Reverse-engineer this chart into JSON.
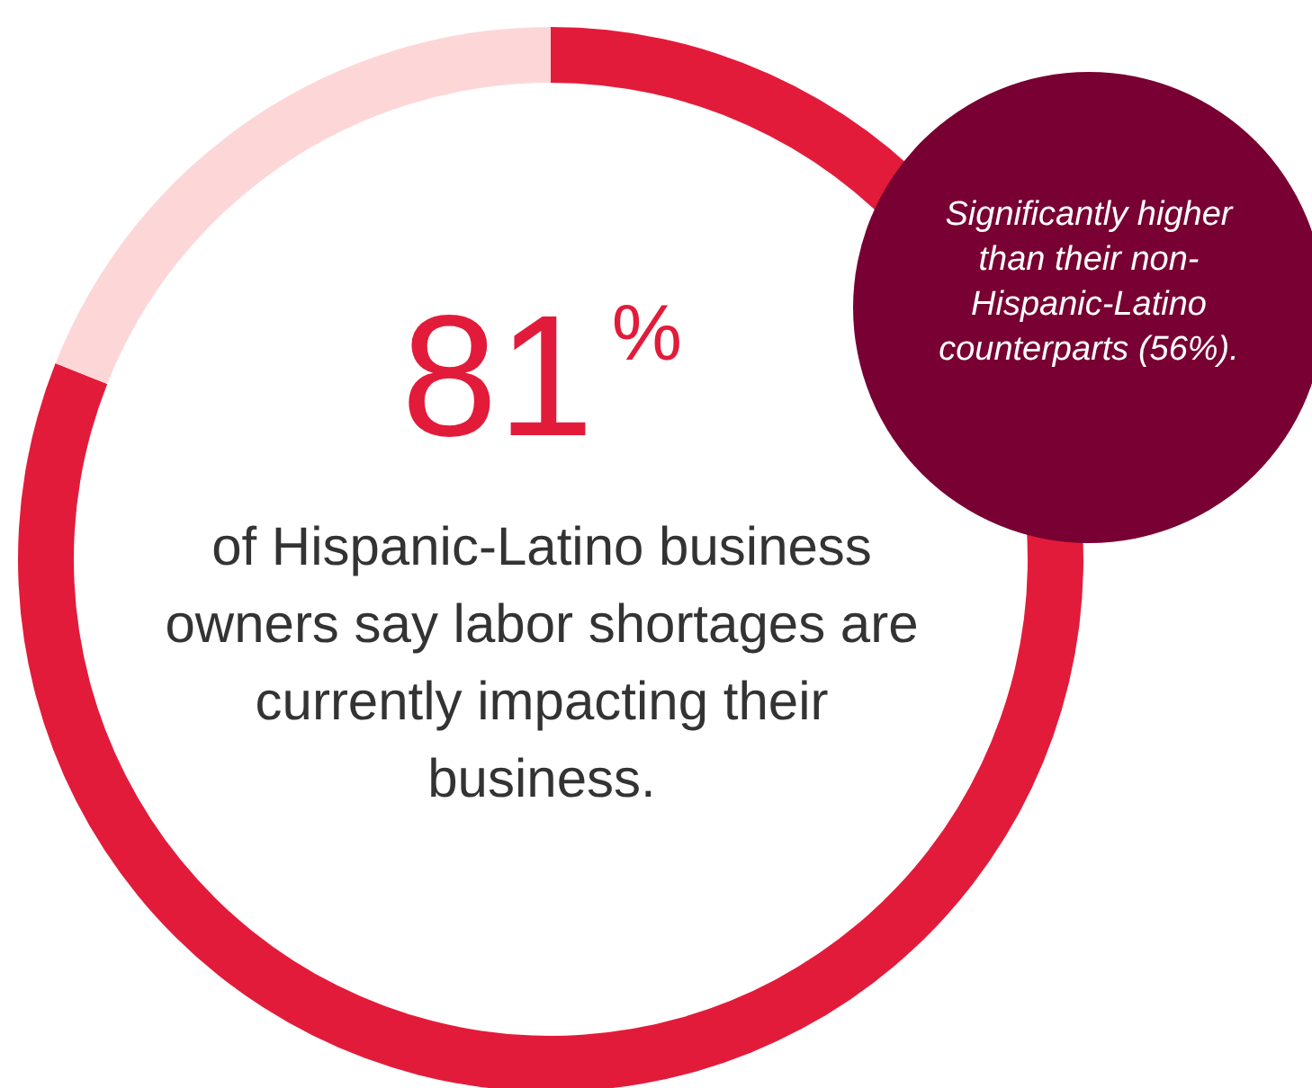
{
  "chart_data": {
    "type": "donut",
    "categories": [
      null,
      null
    ],
    "values": [
      81,
      19
    ],
    "colors": [
      "#e31b3a",
      "#fdd7d7"
    ],
    "value_labels": [
      "81$^{%}$",
      null
    ],
    "annotations": [
      "of Hispanic-Latino business owners say labor shortages are currently impacting their business.",
      "Significantly higher than their non-Hispanic-Latino counterparts (56%)."
    ]
  }
}
